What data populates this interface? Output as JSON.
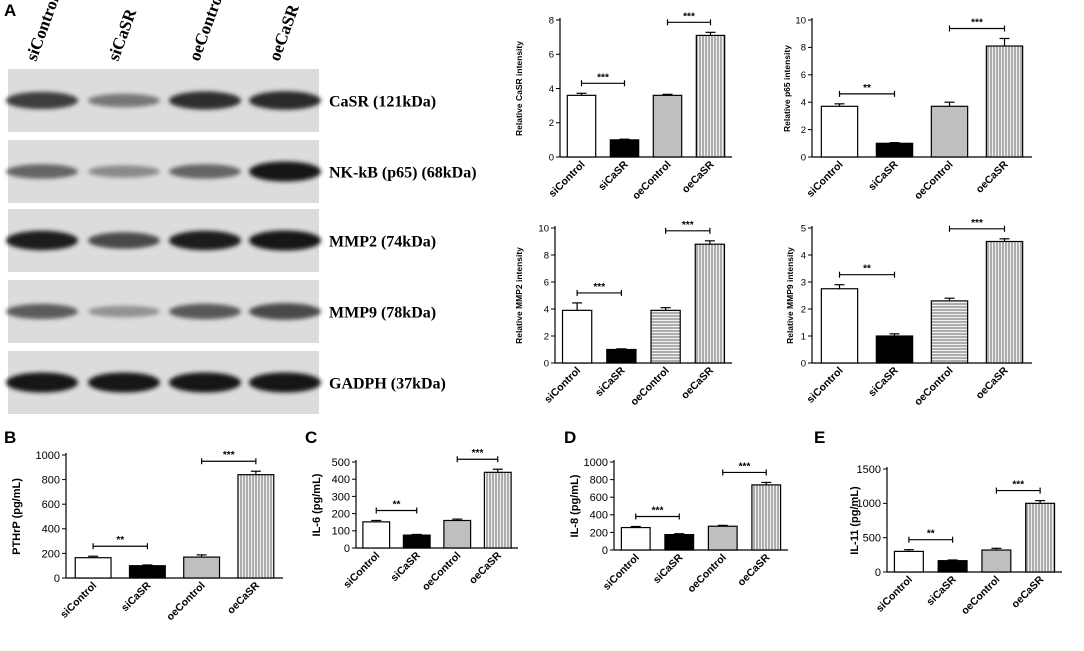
{
  "panels": {
    "A": "A",
    "B": "B",
    "C": "C",
    "D": "D",
    "E": "E"
  },
  "blot": {
    "lanes": [
      "siControl",
      "siCaSR",
      "oeControl",
      "oeCaSR"
    ],
    "rows": [
      {
        "label": "CaSR (121kDa)",
        "intensity": [
          0.78,
          0.45,
          0.85,
          0.88
        ]
      },
      {
        "label": "NK-kB (p65) (68kDa)",
        "intensity": [
          0.55,
          0.35,
          0.55,
          1.0
        ]
      },
      {
        "label": "MMP2 (74kDa)",
        "intensity": [
          0.95,
          0.7,
          0.95,
          1.0
        ]
      },
      {
        "label": "MMP9 (78kDa)",
        "intensity": [
          0.6,
          0.3,
          0.62,
          0.7
        ]
      },
      {
        "label": "GADPH (37kDa)",
        "intensity": [
          1.0,
          1.0,
          1.0,
          1.0
        ]
      }
    ]
  },
  "chart_data": [
    {
      "id": "casr",
      "panel": "A",
      "type": "bar",
      "categories": [
        "siControl",
        "siCaSR",
        "oeControl",
        "oeCaSR"
      ],
      "values": [
        3.6,
        1.0,
        3.6,
        7.1
      ],
      "errors": [
        0.12,
        0.04,
        0.06,
        0.18
      ],
      "ylabel": "Relative CaSR intensity",
      "ylim": [
        0,
        8
      ],
      "yticks": [
        0,
        2,
        4,
        6,
        8
      ],
      "fills": [
        "white",
        "black",
        "gray",
        "vstripe"
      ],
      "significance": [
        {
          "from": 0,
          "to": 1,
          "label": "***"
        },
        {
          "from": 2,
          "to": 3,
          "label": "***"
        }
      ]
    },
    {
      "id": "p65",
      "panel": "A",
      "type": "bar",
      "categories": [
        "siControl",
        "siCaSR",
        "oeControl",
        "oeCaSR"
      ],
      "values": [
        3.7,
        1.0,
        3.7,
        8.1
      ],
      "errors": [
        0.18,
        0.05,
        0.3,
        0.55
      ],
      "ylabel": "Relative p65 intensity",
      "ylim": [
        0,
        10
      ],
      "yticks": [
        0,
        2,
        4,
        6,
        8,
        10
      ],
      "fills": [
        "white",
        "black",
        "gray",
        "vstripe"
      ],
      "significance": [
        {
          "from": 0,
          "to": 1,
          "label": "**"
        },
        {
          "from": 2,
          "to": 3,
          "label": "***"
        }
      ]
    },
    {
      "id": "mmp2",
      "panel": "A",
      "type": "bar",
      "categories": [
        "siControl",
        "siCaSR",
        "oeControl",
        "oeCaSR"
      ],
      "values": [
        3.9,
        1.0,
        3.9,
        8.8
      ],
      "errors": [
        0.55,
        0.05,
        0.2,
        0.25
      ],
      "ylabel": "Relative MMP2 intensity",
      "ylim": [
        0,
        10
      ],
      "yticks": [
        0,
        2,
        4,
        6,
        8,
        10
      ],
      "fills": [
        "white",
        "black",
        "hstripe",
        "vstripe"
      ],
      "significance": [
        {
          "from": 0,
          "to": 1,
          "label": "***"
        },
        {
          "from": 2,
          "to": 3,
          "label": "***"
        }
      ]
    },
    {
      "id": "mmp9",
      "panel": "A",
      "type": "bar",
      "categories": [
        "siControl",
        "siCaSR",
        "oeControl",
        "oeCaSR"
      ],
      "values": [
        2.75,
        1.0,
        2.3,
        4.5
      ],
      "errors": [
        0.15,
        0.08,
        0.1,
        0.1
      ],
      "ylabel": "Relative MMP9 intensity",
      "ylim": [
        0,
        5
      ],
      "yticks": [
        0,
        1,
        2,
        3,
        4,
        5
      ],
      "fills": [
        "white",
        "black",
        "hstripe",
        "vstripe"
      ],
      "significance": [
        {
          "from": 0,
          "to": 1,
          "label": "**"
        },
        {
          "from": 2,
          "to": 3,
          "label": "***"
        }
      ]
    },
    {
      "id": "pthrp",
      "panel": "B",
      "type": "bar",
      "categories": [
        "siControl",
        "siCaSR",
        "oeControl",
        "oeCaSR"
      ],
      "values": [
        165,
        100,
        170,
        840
      ],
      "errors": [
        12,
        6,
        18,
        28
      ],
      "ylabel": "PTHrP (pg/mL)",
      "ylim": [
        0,
        1000
      ],
      "yticks": [
        0,
        200,
        400,
        600,
        800,
        1000
      ],
      "fills": [
        "white",
        "black",
        "gray",
        "vstripe"
      ],
      "significance": [
        {
          "from": 0,
          "to": 1,
          "label": "**"
        },
        {
          "from": 2,
          "to": 3,
          "label": "***"
        }
      ]
    },
    {
      "id": "il6",
      "panel": "C",
      "type": "bar",
      "categories": [
        "siControl",
        "siCaSR",
        "oeControl",
        "oeCaSR"
      ],
      "values": [
        152,
        75,
        160,
        440
      ],
      "errors": [
        8,
        4,
        8,
        18
      ],
      "ylabel": "IL-6 (pg/mL)",
      "ylim": [
        0,
        500
      ],
      "yticks": [
        0,
        100,
        200,
        300,
        400,
        500
      ],
      "fills": [
        "white",
        "black",
        "gray",
        "vstripe"
      ],
      "significance": [
        {
          "from": 0,
          "to": 1,
          "label": "**"
        },
        {
          "from": 2,
          "to": 3,
          "label": "***"
        }
      ]
    },
    {
      "id": "il8",
      "panel": "D",
      "type": "bar",
      "categories": [
        "siControl",
        "siCaSR",
        "oeControl",
        "oeCaSR"
      ],
      "values": [
        255,
        175,
        270,
        740
      ],
      "errors": [
        12,
        10,
        10,
        28
      ],
      "ylabel": "IL-8 (pg/mL)",
      "ylim": [
        0,
        1000
      ],
      "yticks": [
        0,
        200,
        400,
        600,
        800,
        1000
      ],
      "fills": [
        "white",
        "black",
        "gray",
        "vstripe"
      ],
      "significance": [
        {
          "from": 0,
          "to": 1,
          "label": "***"
        },
        {
          "from": 2,
          "to": 3,
          "label": "***"
        }
      ]
    },
    {
      "id": "il11",
      "panel": "E",
      "type": "bar",
      "categories": [
        "siControl",
        "siCaSR",
        "oeControl",
        "oeCaSR"
      ],
      "values": [
        300,
        165,
        320,
        1000
      ],
      "errors": [
        25,
        10,
        25,
        40
      ],
      "ylabel": "IL-11 (pg/mL)",
      "ylim": [
        0,
        1500
      ],
      "yticks": [
        0,
        500,
        1000,
        1500
      ],
      "fills": [
        "white",
        "black",
        "gray",
        "vstripe"
      ],
      "significance": [
        {
          "from": 0,
          "to": 1,
          "label": "**"
        },
        {
          "from": 2,
          "to": 3,
          "label": "***"
        }
      ]
    }
  ]
}
